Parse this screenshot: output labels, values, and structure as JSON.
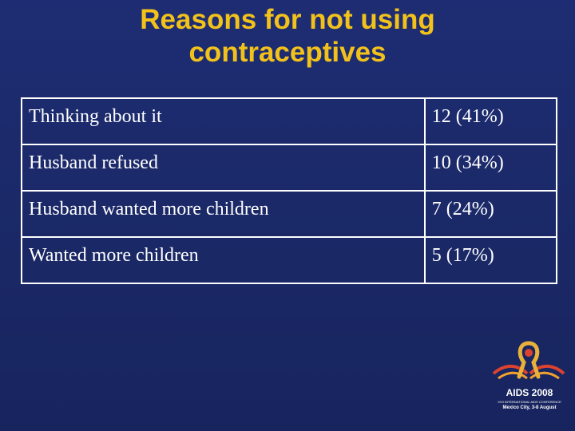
{
  "title": {
    "line1": "Reasons for not using",
    "line2": "contraceptives"
  },
  "table": {
    "rows": [
      {
        "reason": "Thinking about it",
        "value": "12 (41%)"
      },
      {
        "reason": "Husband refused",
        "value": "10 (34%)"
      },
      {
        "reason": "Husband wanted more children",
        "value": "7 (24%)"
      },
      {
        "reason": "Wanted more children",
        "value": "5 (17%)"
      }
    ]
  },
  "logo": {
    "name": "AIDS 2008",
    "conference": "XVII INTERNATIONAL AIDS CONFERENCE",
    "location": "Mexico City, 3-8 August"
  },
  "colors": {
    "background": "#1b2a6b",
    "title": "#f2c21b",
    "text": "#ffffff",
    "ribbon": "#e8b23a"
  }
}
